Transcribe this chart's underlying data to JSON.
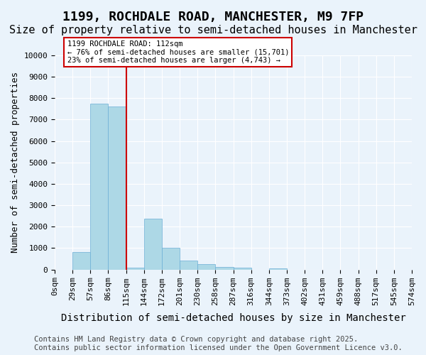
{
  "title": "1199, ROCHDALE ROAD, MANCHESTER, M9 7FP",
  "subtitle": "Size of property relative to semi-detached houses in Manchester",
  "xlabel": "Distribution of semi-detached houses by size in Manchester",
  "ylabel": "Number of semi-detached properties",
  "bin_labels": [
    "0sqm",
    "29sqm",
    "57sqm",
    "86sqm",
    "115sqm",
    "144sqm",
    "172sqm",
    "201sqm",
    "230sqm",
    "258sqm",
    "287sqm",
    "316sqm",
    "344sqm",
    "373sqm",
    "402sqm",
    "431sqm",
    "459sqm",
    "488sqm",
    "517sqm",
    "545sqm",
    "574sqm"
  ],
  "bar_values": [
    0,
    830,
    7750,
    7620,
    100,
    2380,
    1020,
    430,
    260,
    120,
    100,
    0,
    50,
    0,
    0,
    0,
    0,
    0,
    0,
    0
  ],
  "bar_color": "#add8e6",
  "bar_edge_color": "#6baed6",
  "property_size_sqm": 112,
  "property_bin_index": 4,
  "vline_color": "#cc0000",
  "annotation_text": "1199 ROCHDALE ROAD: 112sqm\n← 76% of semi-detached houses are smaller (15,701)\n23% of semi-detached houses are larger (4,743) →",
  "annotation_box_color": "#ffffff",
  "annotation_border_color": "#cc0000",
  "ylim": [
    0,
    10000
  ],
  "yticks": [
    0,
    1000,
    2000,
    3000,
    4000,
    5000,
    6000,
    7000,
    8000,
    9000,
    10000
  ],
  "footer_text": "Contains HM Land Registry data © Crown copyright and database right 2025.\nContains public sector information licensed under the Open Government Licence v3.0.",
  "bg_color": "#eaf3fb",
  "plot_bg_color": "#eaf3fb",
  "grid_color": "#ffffff",
  "title_fontsize": 13,
  "subtitle_fontsize": 11,
  "tick_fontsize": 8,
  "ylabel_fontsize": 9,
  "xlabel_fontsize": 10,
  "footer_fontsize": 7.5
}
